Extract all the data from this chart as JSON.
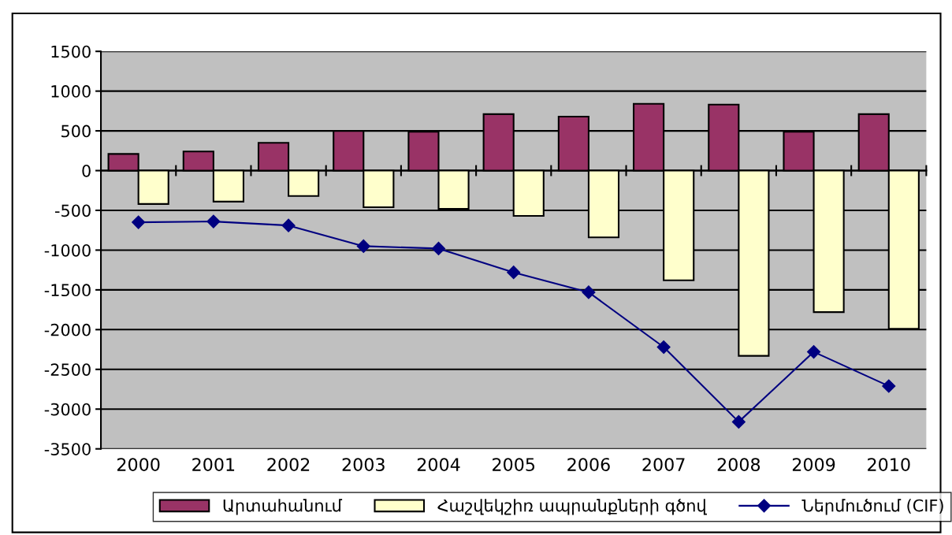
{
  "chart_data": {
    "type": "bar",
    "categories": [
      "2000",
      "2001",
      "2002",
      "2003",
      "2004",
      "2005",
      "2006",
      "2007",
      "2008",
      "2009",
      "2010"
    ],
    "series": [
      {
        "name": "Արտահանում",
        "color": "#993366",
        "values": [
          210,
          240,
          350,
          500,
          490,
          710,
          680,
          840,
          830,
          490,
          710
        ]
      },
      {
        "name": "Հաշվեկշիռ ապրանքների գծով",
        "color": "#ffffcc",
        "values": [
          -420,
          -390,
          -320,
          -460,
          -480,
          -570,
          -840,
          -1380,
          -2330,
          -1780,
          -1990
        ]
      },
      {
        "name": "Ներմուծում (CIF)",
        "color": "#000080",
        "type": "line",
        "marker": "diamond",
        "values": [
          -650,
          -640,
          -690,
          -950,
          -980,
          -1280,
          -1530,
          -2220,
          -3160,
          -2280,
          -2710
        ]
      }
    ],
    "ylim": [
      -3500,
      1500
    ],
    "yticks": [
      -3500,
      -3000,
      -2500,
      -2000,
      -1500,
      -1000,
      -500,
      0,
      500,
      1000,
      1500
    ],
    "grid": "y",
    "legend": "bottom"
  }
}
